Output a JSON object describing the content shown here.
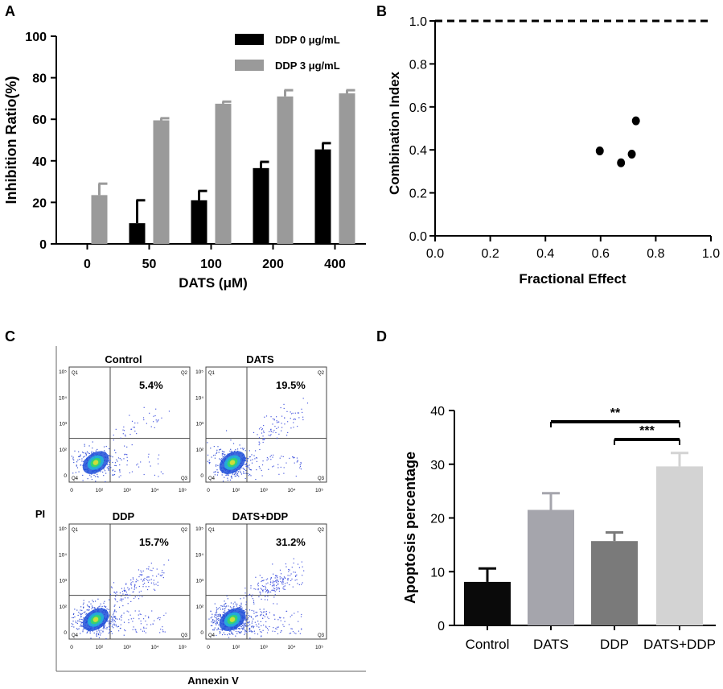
{
  "colors": {
    "black": "#000000",
    "gray": "#9a9a9a",
    "d_control": "#0a0a0a",
    "d_dats": "#a5a5ac",
    "d_ddp": "#7a7a7a",
    "d_datsddp": "#d3d3d3"
  },
  "chart_data": [
    {
      "panel": "A",
      "type": "bar",
      "categories": [
        "0",
        "50",
        "100",
        "200",
        "400"
      ],
      "series": [
        {
          "name": "DDP  0 μg/mL",
          "values": [
            0,
            10,
            21,
            36.5,
            45.5
          ],
          "errors": [
            0,
            11,
            4.5,
            3,
            3
          ]
        },
        {
          "name": "DDP  3 μg/mL",
          "values": [
            23.5,
            59.5,
            67.5,
            71,
            72.5
          ],
          "errors": [
            5.5,
            1,
            1,
            3,
            1.5
          ]
        }
      ],
      "title": "",
      "xlabel": "DATS (μM)",
      "ylabel": "Inhibition Ratio(%)",
      "ylim": [
        0,
        100
      ],
      "yticks": [
        "0",
        "20",
        "40",
        "60",
        "80",
        "100"
      ]
    },
    {
      "panel": "B",
      "type": "scatter",
      "points": [
        [
          0.597,
          0.395
        ],
        [
          0.674,
          0.34
        ],
        [
          0.713,
          0.38
        ],
        [
          0.728,
          0.535
        ]
      ],
      "xlabel": "Fractional Effect",
      "ylabel": "Combination Index",
      "xlim": [
        0,
        1
      ],
      "ylim": [
        0,
        1
      ],
      "xticks": [
        "0.0",
        "0.2",
        "0.4",
        "0.6",
        "0.8",
        "1.0"
      ],
      "yticks": [
        "0.0",
        "0.2",
        "0.4",
        "0.6",
        "0.8",
        "1.0"
      ],
      "reference_line_y": 1.0
    },
    {
      "panel": "C",
      "type": "scatter",
      "subplots": [
        {
          "title": "Control",
          "percent": "5.4%"
        },
        {
          "title": "DATS",
          "percent": "19.5%"
        },
        {
          "title": "DDP",
          "percent": "15.7%"
        },
        {
          "title": "DATS+DDP",
          "percent": "31.2%"
        }
      ],
      "quadrants": [
        "Q1",
        "Q2",
        "Q3",
        "Q4"
      ],
      "xticks": [
        "0",
        "10²",
        "10³",
        "10⁴",
        "10⁵"
      ],
      "yticks": [
        "0",
        "10²",
        "10³",
        "10⁴",
        "10⁵"
      ],
      "xlabel": "Annexin V",
      "ylabel": "PI"
    },
    {
      "panel": "D",
      "type": "bar",
      "categories": [
        "Control",
        "DATS",
        "DDP",
        "DATS+DDP"
      ],
      "values": [
        8.1,
        21.5,
        15.7,
        29.6
      ],
      "errors": [
        2.5,
        3.1,
        1.6,
        2.5
      ],
      "xlabel": "",
      "ylabel": "Apoptosis percentage",
      "ylim": [
        0,
        40
      ],
      "yticks": [
        "0",
        "10",
        "20",
        "30",
        "40"
      ],
      "significance": [
        {
          "from": "DATS",
          "to": "DATS+DDP",
          "label": "**"
        },
        {
          "from": "DDP",
          "to": "DATS+DDP",
          "label": "***"
        }
      ]
    }
  ],
  "panel_labels": [
    "A",
    "B",
    "C",
    "D"
  ]
}
